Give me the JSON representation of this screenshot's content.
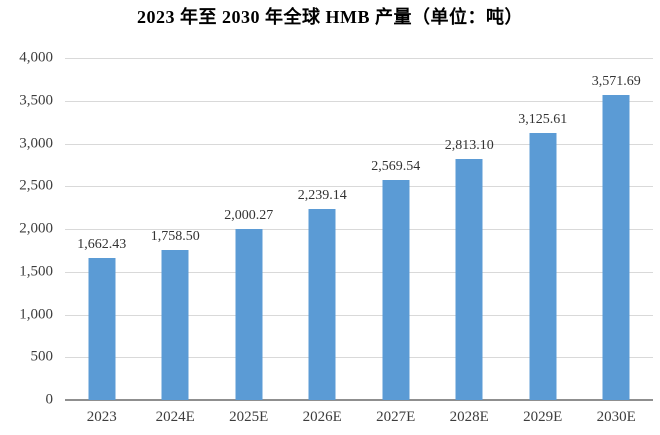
{
  "title": "2023 年至 2030 年全球 HMB 产量（单位：吨）",
  "colors": {
    "bar": "#5B9BD5",
    "gridline": "#D9D9D9",
    "axis_line": "#8F8F8F",
    "tick_text": "#3D3D3D",
    "value_label_text": "#333333",
    "title_text": "#000000",
    "background": "#FFFFFF"
  },
  "chart_data": {
    "type": "bar",
    "title": "2023 年至 2030 年全球 HMB 产量（单位：吨）",
    "categories": [
      "2023",
      "2024E",
      "2025E",
      "2026E",
      "2027E",
      "2028E",
      "2029E",
      "2030E"
    ],
    "values": [
      1662.43,
      1758.5,
      2000.27,
      2239.14,
      2569.54,
      2813.1,
      3125.61,
      3571.69
    ],
    "value_labels": [
      "1,662.43",
      "1,758.50",
      "2,000.27",
      "2,239.14",
      "2,569.54",
      "2,813.10",
      "3,125.61",
      "3,571.69"
    ],
    "xlabel": "",
    "ylabel": "",
    "ylim": [
      0,
      4000
    ],
    "ytick_step": 500,
    "ytick_labels": [
      "0",
      "500",
      "1,000",
      "1,500",
      "2,000",
      "2,500",
      "3,000",
      "3,500",
      "4,000"
    ],
    "grid": true,
    "legend": false,
    "series_color": "#5B9BD5"
  }
}
